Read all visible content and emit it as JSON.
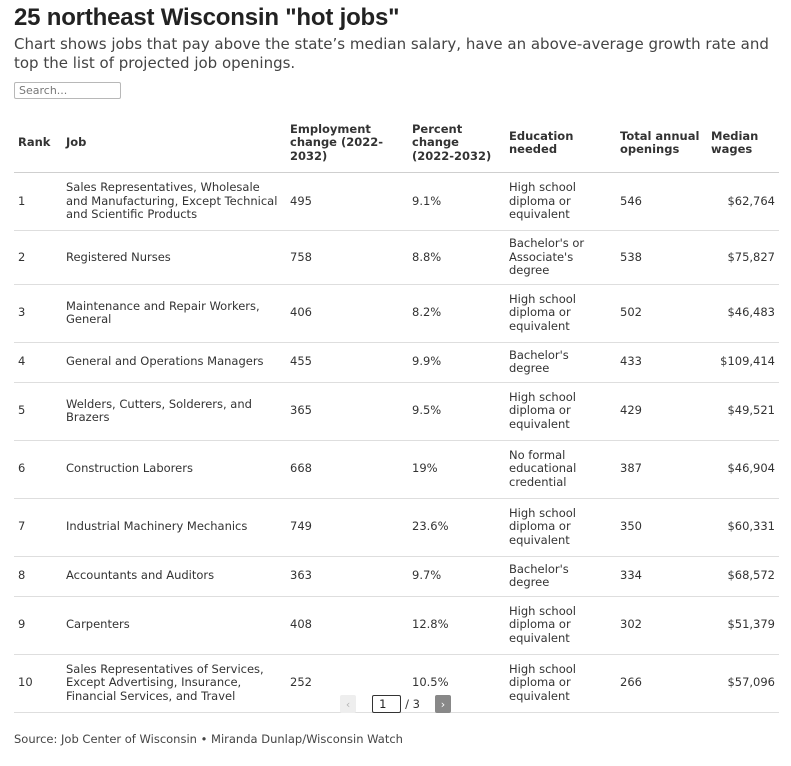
{
  "title": "25 northeast Wisconsin \"hot jobs\"",
  "subtitle": "Chart shows jobs that pay above the state’s median salary, have an above-average growth rate and top the list of projected job openings.",
  "search": {
    "placeholder": "Search..."
  },
  "chart_data": {
    "type": "table",
    "columns": [
      "Rank",
      "Job",
      "Employment change (2022-2032)",
      "Percent change (2022-2032)",
      "Education needed",
      "Total annual openings",
      "Median wages"
    ],
    "rows": [
      [
        "1",
        "Sales Representatives, Wholesale and Manufacturing, Except Technical and Scientific Products",
        "495",
        "9.1%",
        "High school diploma or equivalent",
        "546",
        "$62,764"
      ],
      [
        "2",
        "Registered Nurses",
        "758",
        "8.8%",
        "Bachelor's or Associate's degree",
        "538",
        "$75,827"
      ],
      [
        "3",
        "Maintenance and Repair Workers, General",
        "406",
        "8.2%",
        "High school diploma or equivalent",
        "502",
        "$46,483"
      ],
      [
        "4",
        "General and Operations Managers",
        "455",
        "9.9%",
        "Bachelor's degree",
        "433",
        "$109,414"
      ],
      [
        "5",
        "Welders, Cutters, Solderers, and Brazers",
        "365",
        "9.5%",
        "High school diploma or equivalent",
        "429",
        "$49,521"
      ],
      [
        "6",
        "Construction Laborers",
        "668",
        "19%",
        "No formal educational credential",
        "387",
        "$46,904"
      ],
      [
        "7",
        "Industrial Machinery Mechanics",
        "749",
        "23.6%",
        "High school diploma or equivalent",
        "350",
        "$60,331"
      ],
      [
        "8",
        "Accountants and Auditors",
        "363",
        "9.7%",
        "Bachelor's degree",
        "334",
        "$68,572"
      ],
      [
        "9",
        "Carpenters",
        "408",
        "12.8%",
        "High school diploma or equivalent",
        "302",
        "$51,379"
      ],
      [
        "10",
        "Sales Representatives of Services, Except Advertising, Insurance, Financial Services, and Travel",
        "252",
        "10.5%",
        "High school diploma or equivalent",
        "266",
        "$57,096"
      ]
    ]
  },
  "pagination": {
    "prev_label": "‹",
    "next_label": "›",
    "current_page": "1",
    "total_label": "/ 3"
  },
  "source": "Source: Job Center of Wisconsin • Miranda Dunlap/Wisconsin Watch"
}
